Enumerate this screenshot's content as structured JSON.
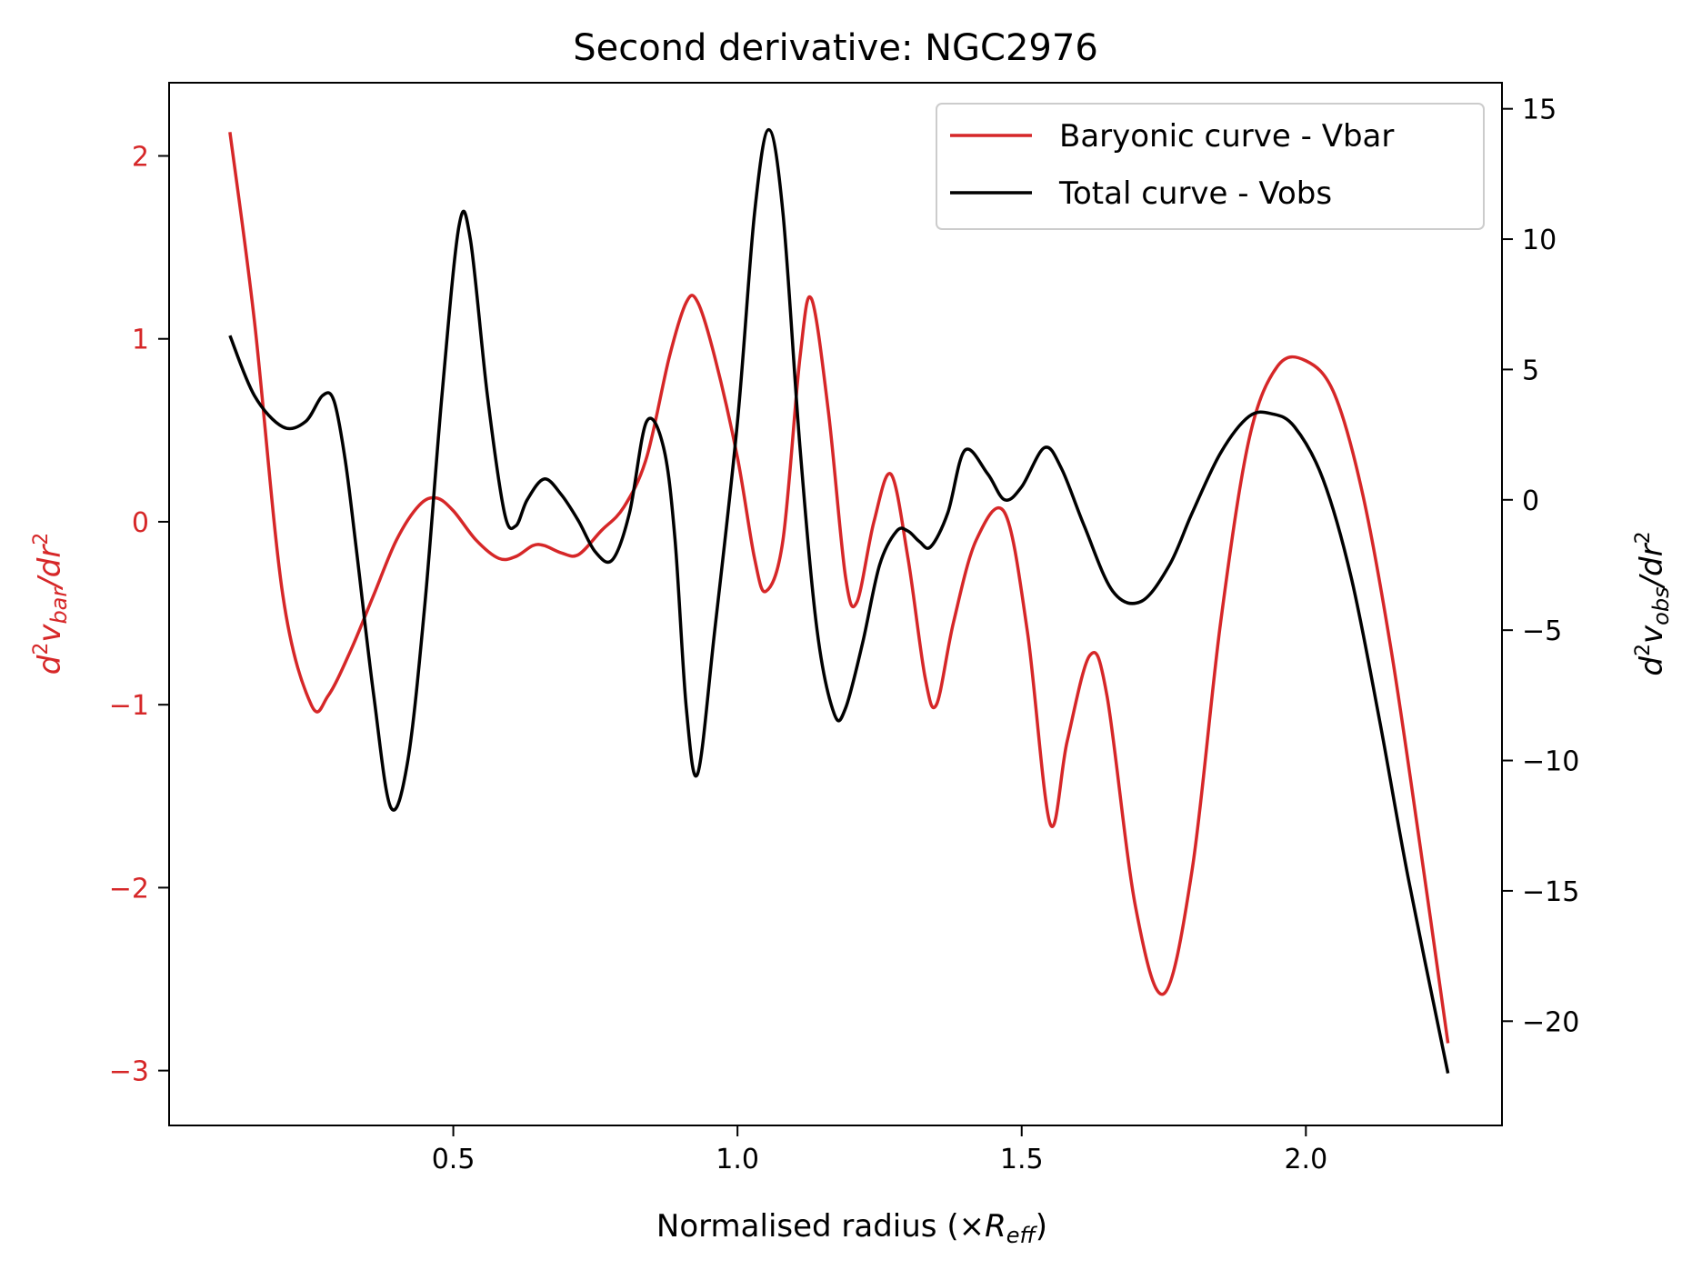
{
  "chart_data": {
    "type": "line",
    "title": "Second derivative: NGC2976",
    "x_axis": {
      "label_main": "Normalised radius (×",
      "label_symbol": "R",
      "label_subscript": "eff",
      "label_close": ")",
      "range": [
        0.0,
        2.345
      ],
      "ticks": [
        0.5,
        1.0,
        1.5,
        2.0
      ],
      "tick_labels": [
        "0.5",
        "1.0",
        "1.5",
        "2.0"
      ]
    },
    "y_axis_left": {
      "label_d": "d",
      "label_sup": "2",
      "label_v": "v",
      "label_subscript": "bar",
      "label_rest": "/dr",
      "label_rest_sup": "2",
      "color": "#d62728",
      "range": [
        -3.3,
        2.4
      ],
      "ticks": [
        2,
        1,
        0,
        -1,
        -2,
        -3
      ],
      "tick_labels": [
        "2",
        "1",
        "0",
        "−1",
        "−2",
        "−3"
      ]
    },
    "y_axis_right": {
      "label_d": "d",
      "label_sup": "2",
      "label_v": "v",
      "label_subscript": "obs",
      "label_rest": "/dr",
      "label_rest_sup": "2",
      "color": "#000000",
      "range": [
        -24,
        16
      ],
      "ticks": [
        15,
        10,
        5,
        0,
        -5,
        -10,
        -15,
        -20
      ],
      "tick_labels": [
        "15",
        "10",
        "5",
        "0",
        "−5",
        "−10",
        "−15",
        "−20"
      ]
    },
    "legend": {
      "position": "top-right",
      "entries": [
        "Baryonic curve - Vbar",
        "Total curve - Vobs"
      ]
    },
    "grid": false,
    "series": [
      {
        "name": "Baryonic curve - Vbar",
        "color": "#d62728",
        "axis": "left",
        "x": [
          0.107,
          0.15,
          0.2,
          0.25,
          0.28,
          0.32,
          0.36,
          0.4,
          0.44,
          0.47,
          0.5,
          0.54,
          0.58,
          0.61,
          0.64,
          0.66,
          0.69,
          0.72,
          0.76,
          0.8,
          0.84,
          0.88,
          0.91,
          0.93,
          0.96,
          1.0,
          1.03,
          1.05,
          1.08,
          1.11,
          1.13,
          1.16,
          1.19,
          1.21,
          1.24,
          1.27,
          1.3,
          1.33,
          1.35,
          1.38,
          1.42,
          1.47,
          1.51,
          1.55,
          1.58,
          1.62,
          1.65,
          1.7,
          1.75,
          1.8,
          1.85,
          1.9,
          1.95,
          2.0,
          2.05,
          2.1,
          2.15,
          2.2,
          2.25
        ],
        "y": [
          2.13,
          1.1,
          -0.4,
          -1.0,
          -0.95,
          -0.7,
          -0.4,
          -0.1,
          0.09,
          0.13,
          0.06,
          -0.1,
          -0.2,
          -0.19,
          -0.13,
          -0.13,
          -0.17,
          -0.18,
          -0.05,
          0.08,
          0.35,
          0.9,
          1.2,
          1.2,
          0.9,
          0.35,
          -0.2,
          -0.38,
          -0.1,
          0.9,
          1.22,
          0.6,
          -0.3,
          -0.44,
          0.0,
          0.26,
          -0.2,
          -0.85,
          -1.0,
          -0.55,
          -0.1,
          0.05,
          -0.6,
          -1.65,
          -1.2,
          -0.73,
          -0.95,
          -2.1,
          -2.58,
          -1.9,
          -0.55,
          0.45,
          0.85,
          0.88,
          0.7,
          0.15,
          -0.7,
          -1.75,
          -2.85
        ]
      },
      {
        "name": "Total curve - Vobs",
        "color": "#000000",
        "axis": "right",
        "x": [
          0.107,
          0.15,
          0.2,
          0.24,
          0.27,
          0.29,
          0.31,
          0.33,
          0.36,
          0.39,
          0.42,
          0.45,
          0.48,
          0.51,
          0.53,
          0.56,
          0.59,
          0.61,
          0.63,
          0.66,
          0.69,
          0.72,
          0.75,
          0.78,
          0.81,
          0.84,
          0.87,
          0.89,
          0.91,
          0.93,
          0.96,
          1.0,
          1.03,
          1.055,
          1.08,
          1.11,
          1.14,
          1.17,
          1.19,
          1.22,
          1.25,
          1.28,
          1.3,
          1.32,
          1.34,
          1.37,
          1.4,
          1.44,
          1.47,
          1.5,
          1.54,
          1.57,
          1.61,
          1.66,
          1.71,
          1.76,
          1.8,
          1.85,
          1.9,
          1.94,
          1.98,
          2.03,
          2.08,
          2.13,
          2.18,
          2.25
        ],
        "y": [
          6.3,
          4.0,
          2.8,
          3.0,
          4.0,
          3.8,
          1.5,
          -2.0,
          -7.5,
          -11.8,
          -10.0,
          -4.0,
          4.0,
          10.5,
          10.0,
          4.0,
          -0.5,
          -1.0,
          0.0,
          0.8,
          0.2,
          -0.8,
          -2.0,
          -2.3,
          -0.5,
          3.0,
          2.0,
          -1.5,
          -8.0,
          -10.5,
          -5.0,
          3.0,
          11.0,
          14.2,
          11.0,
          2.0,
          -5.0,
          -8.2,
          -8.0,
          -5.5,
          -2.5,
          -1.2,
          -1.2,
          -1.6,
          -1.8,
          -0.5,
          1.9,
          1.0,
          0.0,
          0.5,
          2.0,
          1.2,
          -1.0,
          -3.5,
          -3.9,
          -2.5,
          -0.5,
          1.8,
          3.2,
          3.3,
          2.8,
          0.8,
          -3.0,
          -8.5,
          -14.5,
          -22.0
        ]
      }
    ]
  }
}
